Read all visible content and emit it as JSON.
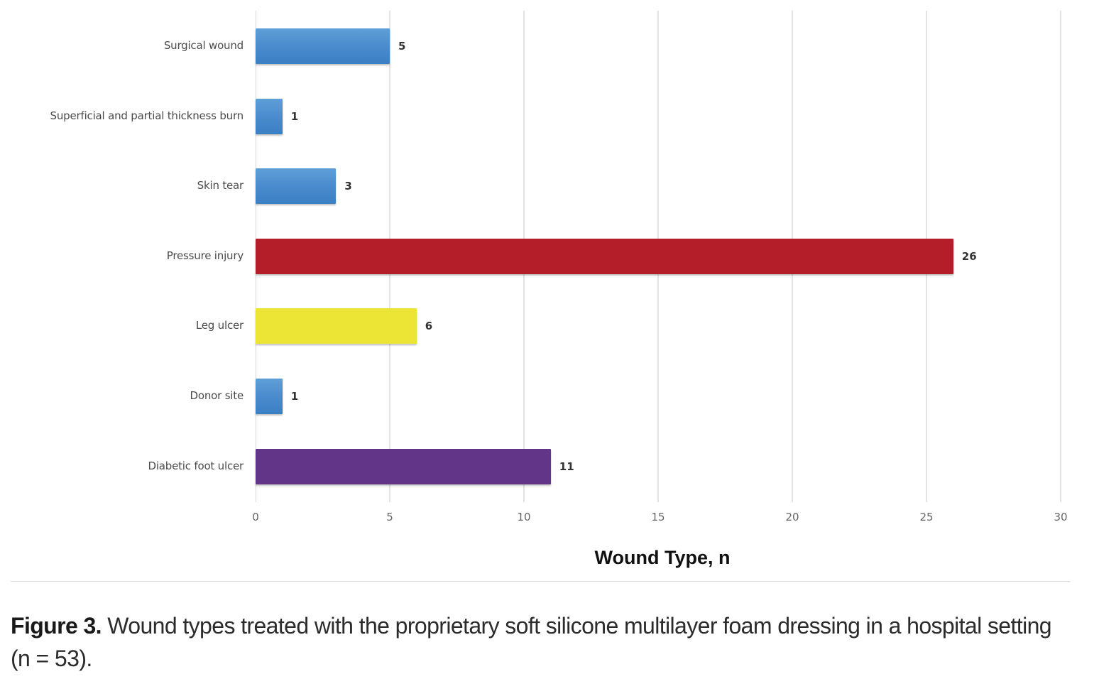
{
  "chart_data": {
    "type": "bar",
    "orientation": "horizontal",
    "title": "",
    "xlabel": "Wound Type, n",
    "ylabel": "",
    "xlim": [
      0,
      30
    ],
    "xticks": [
      0,
      5,
      10,
      15,
      20,
      25,
      30
    ],
    "grid": true,
    "legend": null,
    "categories": [
      "Surgical wound",
      "Superficial and partial thickness burn",
      "Skin tear",
      "Pressure injury",
      "Leg ulcer",
      "Donor site",
      "Diabetic foot ulcer"
    ],
    "values": [
      5,
      1,
      3,
      26,
      6,
      1,
      11
    ],
    "colors": [
      "#4a8ccd",
      "#4a8ccd",
      "#4a8ccd",
      "#b41e28",
      "#ede535",
      "#4a8ccd",
      "#623589"
    ],
    "data_labels": [
      "5",
      "1",
      "3",
      "26",
      "6",
      "1",
      "11"
    ]
  },
  "axis": {
    "ticks": [
      "0",
      "5",
      "10",
      "15",
      "20",
      "25",
      "30"
    ],
    "title": "Wound Type, n"
  },
  "caption": {
    "label": "Figure 3.",
    "text": " Wound types treated with the proprietary soft silicone multilayer foam dressing in a hospital setting (n = 53)."
  }
}
